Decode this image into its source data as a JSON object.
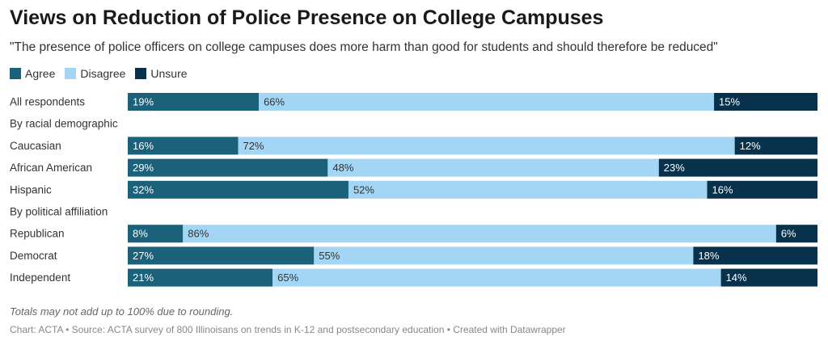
{
  "colors": {
    "agree": "#1a6179",
    "disagree": "#a3d6f4",
    "unsure": "#08324b"
  },
  "chart_data": {
    "type": "bar",
    "orientation": "horizontal-stacked-100",
    "title": "Views on Reduction of Police Presence on College Campuses",
    "subtitle": "\"The presence of police officers on college campuses does more harm than good for students and should therefore be reduced\"",
    "legend": [
      "Agree",
      "Disagree",
      "Unsure"
    ],
    "rows": [
      {
        "label": "All respondents",
        "values": [
          19,
          66,
          15
        ]
      },
      {
        "label": "By racial demographic",
        "group_header": true
      },
      {
        "label": "Caucasian",
        "values": [
          16,
          72,
          12
        ]
      },
      {
        "label": "African American",
        "values": [
          29,
          48,
          23
        ]
      },
      {
        "label": "Hispanic",
        "values": [
          32,
          52,
          16
        ]
      },
      {
        "label": "By political affiliation",
        "group_header": true
      },
      {
        "label": "Republican",
        "values": [
          8,
          86,
          6
        ]
      },
      {
        "label": "Democrat",
        "values": [
          27,
          55,
          18
        ]
      },
      {
        "label": "Independent",
        "values": [
          21,
          65,
          14
        ]
      }
    ],
    "note": "Totals may not add up to 100% due to rounding.",
    "footer": "Chart: ACTA • Source: ACTA survey of 800 Illinoisans on trends in K-12 and postsecondary education • Created with Datawrapper"
  }
}
